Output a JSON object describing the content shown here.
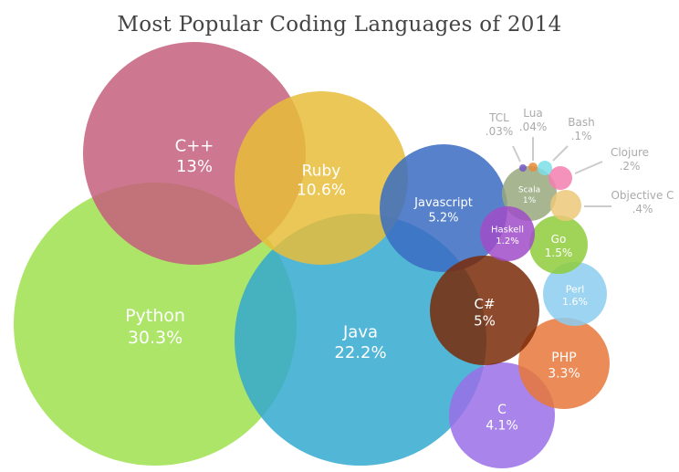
{
  "chart_data": {
    "type": "bubble",
    "title": "Most Popular Coding Languages of 2014",
    "unit": "%",
    "bubbles": [
      {
        "name": "Python",
        "label": "30.3%",
        "value": 30.3,
        "color": "#9fe04f"
      },
      {
        "name": "Java",
        "label": "22.2%",
        "value": 22.2,
        "color": "#34a9cf"
      },
      {
        "name": "C++",
        "label": "13%",
        "value": 13,
        "color": "#c45f7c"
      },
      {
        "name": "Ruby",
        "label": "10.6%",
        "value": 10.6,
        "color": "#e8bd3a"
      },
      {
        "name": "Javascript",
        "label": "5.2%",
        "value": 5.2,
        "color": "#3a6cc2"
      },
      {
        "name": "C",
        "label": "4.1%",
        "value": 4.1,
        "color": "#9a6ee8"
      },
      {
        "name": "PHP",
        "label": "3.3%",
        "value": 3.3,
        "color": "#e8773a"
      },
      {
        "name": "Perl",
        "label": "1.6%",
        "value": 1.6,
        "color": "#8ccdf0"
      },
      {
        "name": "C#",
        "label": "5%",
        "value": 5,
        "color": "#7a2a08"
      },
      {
        "name": "Go",
        "label": "1.5%",
        "value": 1.5,
        "color": "#8fcc3c"
      },
      {
        "name": "Scala",
        "label": "1%",
        "value": 1,
        "color": "#98a87e"
      },
      {
        "name": "Haskell",
        "label": "1.2%",
        "value": 1.2,
        "color": "#a04cc8"
      },
      {
        "name": "Objective C",
        "label": ".4%",
        "value": 0.4,
        "color": "#ecc878"
      },
      {
        "name": "Clojure",
        "label": ".2%",
        "value": 0.2,
        "color": "#f37fb0"
      },
      {
        "name": "Bash",
        "label": ".1%",
        "value": 0.1,
        "color": "#7bdfe8"
      },
      {
        "name": "Lua",
        "label": ".04%",
        "value": 0.04,
        "color": "#e88c38"
      },
      {
        "name": "TCL",
        "label": ".03%",
        "value": 0.03,
        "color": "#7558c8"
      }
    ]
  }
}
